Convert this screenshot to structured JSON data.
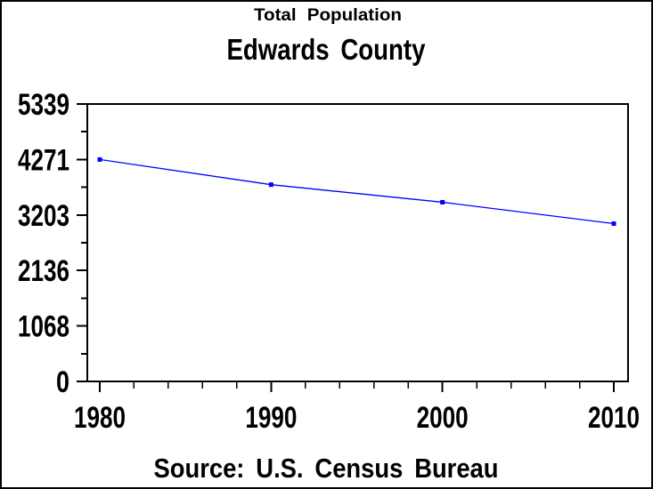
{
  "page": {
    "background": "#FFFFFF",
    "border_color": "#000000"
  },
  "chart_data": {
    "type": "line",
    "title": "Total Population",
    "subtitle": "Edwards County",
    "source_note": "Source:  U.S.  Census  Bureau",
    "categories": [
      1980,
      1990,
      2000,
      2010
    ],
    "series": [
      {
        "name": "Total Population",
        "color": "#0000FF",
        "marker": "filled-square-dot",
        "values": [
          4271,
          3787,
          3449,
          3037
        ]
      }
    ],
    "xlabel": "",
    "ylabel": "",
    "xlim": [
      1980,
      2010
    ],
    "ylim": [
      0,
      5339
    ],
    "y_ticks": [
      0,
      1068,
      2136,
      3203,
      4271,
      5339
    ],
    "y_minor_ticks": [
      534,
      1602,
      2669,
      3737,
      4805
    ],
    "x_ticks": [
      1980,
      1990,
      2000,
      2010
    ],
    "x_minor_ticks": [
      1982,
      1984,
      1986,
      1988,
      1992,
      1994,
      1996,
      1998,
      2002,
      2004,
      2006,
      2008
    ],
    "grid": false,
    "legend": "none",
    "frame": "box",
    "axis_color": "#000000",
    "text_color": "#000000"
  }
}
